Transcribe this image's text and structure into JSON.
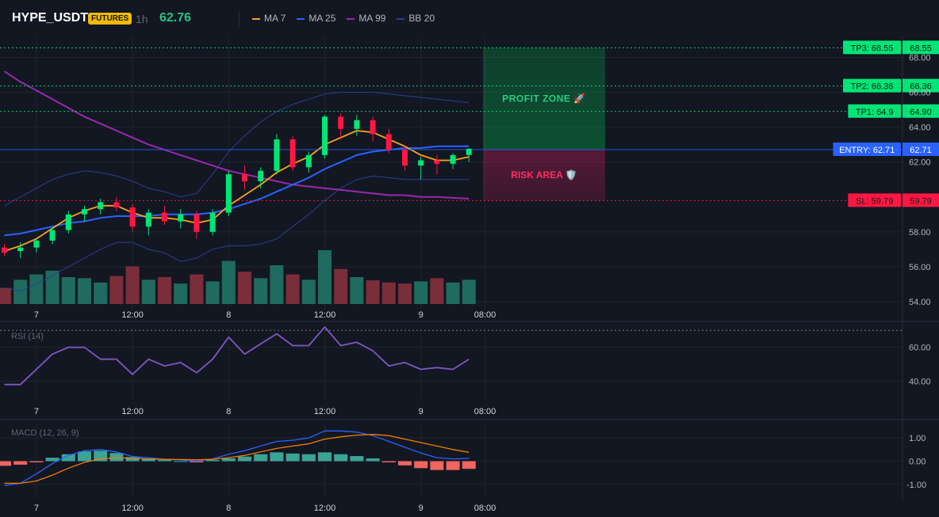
{
  "header": {
    "symbol": "HYPE_USDT",
    "badge": "FUTURES",
    "interval": "1h",
    "price": "62.76",
    "legend": [
      {
        "label": "MA 7",
        "color": "#f7a21b"
      },
      {
        "label": "MA 25",
        "color": "#2962ff"
      },
      {
        "label": "MA 99",
        "color": "#9c27b0"
      },
      {
        "label": "BB 20",
        "color": "#2a3f8f"
      }
    ]
  },
  "colors": {
    "up": "#26a69a",
    "down": "#ef5350",
    "candle_up": "#00e676",
    "candle_down": "#ff1744",
    "entry": "#2962ff",
    "tp": "#00e676",
    "sl": "#ff1744",
    "rsi": "#7e57c2",
    "macd": "#2962ff",
    "signal": "#f57c00"
  },
  "chart_data": [
    {
      "type": "candlestick",
      "panel": "price",
      "ylim": [
        53.5,
        69.2
      ],
      "y_ticks": [
        "68.00",
        "66.00",
        "64.00",
        "62.00",
        "58.00",
        "56.00",
        "54.00"
      ],
      "y_tick_values": [
        68,
        66,
        64,
        62,
        58,
        56,
        54
      ],
      "x_ticks": [
        "7",
        "12:00",
        "8",
        "12:00",
        "9",
        "08:00"
      ],
      "x_tick_index": [
        2,
        8,
        14,
        20,
        26,
        30
      ],
      "ohlc": [
        [
          57.1,
          57.3,
          56.6,
          56.8
        ],
        [
          56.9,
          57.4,
          56.5,
          57.1
        ],
        [
          57.1,
          57.6,
          56.8,
          57.5
        ],
        [
          57.5,
          58.3,
          57.3,
          58.1
        ],
        [
          58.1,
          59.2,
          57.9,
          59.0
        ],
        [
          59.0,
          59.5,
          58.6,
          59.3
        ],
        [
          59.3,
          59.9,
          59.0,
          59.7
        ],
        [
          59.7,
          60.0,
          59.2,
          59.4
        ],
        [
          59.4,
          59.6,
          58.0,
          58.3
        ],
        [
          58.3,
          59.3,
          57.8,
          59.1
        ],
        [
          59.1,
          59.5,
          58.4,
          58.6
        ],
        [
          58.6,
          59.3,
          58.2,
          59.0
        ],
        [
          59.0,
          59.2,
          57.6,
          58.0
        ],
        [
          58.0,
          59.3,
          57.8,
          59.1
        ],
        [
          59.1,
          61.5,
          58.9,
          61.3
        ],
        [
          61.3,
          61.8,
          60.4,
          60.9
        ],
        [
          60.9,
          61.7,
          60.5,
          61.5
        ],
        [
          61.5,
          63.6,
          61.3,
          63.3
        ],
        [
          63.3,
          63.5,
          61.5,
          61.7
        ],
        [
          61.7,
          62.6,
          61.4,
          62.4
        ],
        [
          62.4,
          64.7,
          62.2,
          64.6
        ],
        [
          64.6,
          64.8,
          63.3,
          63.9
        ],
        [
          63.9,
          64.7,
          63.5,
          64.4
        ],
        [
          64.4,
          64.6,
          63.2,
          63.6
        ],
        [
          63.6,
          63.9,
          62.5,
          62.7
        ],
        [
          62.7,
          62.9,
          61.5,
          61.8
        ],
        [
          61.8,
          62.3,
          61.0,
          62.1
        ],
        [
          62.1,
          62.4,
          61.3,
          61.9
        ],
        [
          61.9,
          62.5,
          61.6,
          62.4
        ],
        [
          62.4,
          62.8,
          62.0,
          62.76
        ]
      ],
      "volume": [
        30,
        45,
        55,
        62,
        50,
        48,
        40,
        52,
        70,
        45,
        50,
        38,
        55,
        42,
        80,
        60,
        48,
        72,
        55,
        45,
        100,
        65,
        50,
        44,
        40,
        38,
        42,
        48,
        40,
        45
      ],
      "ma7": [
        56.9,
        57.2,
        57.6,
        58.2,
        58.8,
        59.2,
        59.5,
        59.5,
        59.1,
        58.8,
        58.8,
        58.7,
        58.5,
        58.7,
        59.5,
        60.1,
        60.7,
        61.4,
        61.9,
        62.3,
        63.0,
        63.4,
        63.8,
        63.7,
        63.3,
        62.9,
        62.4,
        62.1,
        62.1,
        62.3
      ],
      "ma25": [
        57.8,
        57.9,
        58.1,
        58.3,
        58.5,
        58.6,
        58.8,
        58.9,
        58.9,
        58.9,
        59.0,
        59.0,
        59.0,
        59.1,
        59.3,
        59.6,
        59.9,
        60.3,
        60.7,
        61.1,
        61.6,
        62.0,
        62.4,
        62.6,
        62.7,
        62.8,
        62.8,
        62.9,
        62.9,
        62.9
      ],
      "ma99": [
        67.2,
        66.6,
        66.1,
        65.6,
        65.1,
        64.6,
        64.2,
        63.8,
        63.4,
        63.0,
        62.7,
        62.4,
        62.1,
        61.8,
        61.5,
        61.3,
        61.1,
        60.9,
        60.7,
        60.6,
        60.5,
        60.4,
        60.3,
        60.2,
        60.1,
        60.1,
        60.0,
        60.0,
        59.95,
        59.9
      ],
      "bb_upper": [
        59.5,
        60.0,
        60.5,
        61.0,
        61.3,
        61.5,
        61.4,
        61.2,
        60.9,
        60.5,
        60.3,
        60.0,
        60.2,
        61.3,
        62.6,
        63.5,
        64.3,
        64.9,
        65.3,
        65.6,
        65.9,
        66.0,
        66.0,
        66.0,
        65.9,
        65.8,
        65.7,
        65.6,
        65.5,
        65.4
      ],
      "bb_lower": [
        54.8,
        54.6,
        55.0,
        55.5,
        56.0,
        56.5,
        57.0,
        57.4,
        57.4,
        57.0,
        56.8,
        56.3,
        56.5,
        57.0,
        57.2,
        57.2,
        57.3,
        57.6,
        58.3,
        59.0,
        59.8,
        60.5,
        61.0,
        61.2,
        61.1,
        61.0,
        61.0,
        61.0,
        61.0,
        61.0
      ],
      "levels": [
        {
          "tag": "TP3: 68.55",
          "price": "68.55",
          "value": 68.55,
          "kind": "tp"
        },
        {
          "tag": "TP2: 66.36",
          "price": "66.36",
          "value": 66.36,
          "kind": "tp"
        },
        {
          "tag": "TP1: 64.9",
          "price": "64.90",
          "value": 64.9,
          "kind": "tp"
        },
        {
          "tag": "ENTRY: 62.71",
          "price": "62.71",
          "value": 62.71,
          "kind": "entry"
        },
        {
          "tag": "SL: 59.79",
          "price": "59.79",
          "value": 59.79,
          "kind": "sl"
        }
      ],
      "zones": {
        "profit": "PROFIT ZONE 🚀",
        "risk": "RISK AREA 🛡️"
      }
    },
    {
      "type": "line",
      "panel": "rsi",
      "label": "RSI (14)",
      "ylim": [
        29,
        72
      ],
      "y_ticks": [
        "60.00",
        "40.00"
      ],
      "y_tick_values": [
        60,
        40
      ],
      "values": [
        38,
        38,
        47,
        56,
        60,
        60,
        53,
        53,
        44,
        53,
        49,
        51,
        45,
        53,
        66,
        56,
        62,
        68,
        61,
        61,
        72,
        61,
        63,
        58,
        49,
        51,
        47,
        48,
        47,
        53
      ]
    },
    {
      "type": "bar+line",
      "panel": "macd",
      "label": "MACD (12, 26, 9)",
      "ylim": [
        -1.55,
        1.55
      ],
      "y_ticks": [
        "1.00",
        "0.00",
        "-1.00"
      ],
      "y_tick_values": [
        1,
        0,
        -1
      ],
      "histogram": [
        -0.2,
        -0.15,
        -0.05,
        0.15,
        0.3,
        0.42,
        0.45,
        0.35,
        0.18,
        0.12,
        0.05,
        0.0,
        -0.05,
        0.05,
        0.12,
        0.2,
        0.3,
        0.38,
        0.33,
        0.3,
        0.38,
        0.3,
        0.22,
        0.12,
        -0.05,
        -0.18,
        -0.3,
        -0.38,
        -0.38,
        -0.33
      ],
      "macd": [
        -1.05,
        -0.95,
        -0.55,
        -0.1,
        0.25,
        0.45,
        0.5,
        0.4,
        0.2,
        0.15,
        0.08,
        0.05,
        0.0,
        0.1,
        0.3,
        0.45,
        0.65,
        0.85,
        0.9,
        1.0,
        1.3,
        1.3,
        1.25,
        1.1,
        0.85,
        0.6,
        0.35,
        0.15,
        0.1,
        0.12
      ],
      "signal": [
        -0.95,
        -0.95,
        -0.85,
        -0.6,
        -0.3,
        -0.05,
        0.1,
        0.15,
        0.12,
        0.1,
        0.08,
        0.07,
        0.06,
        0.08,
        0.15,
        0.25,
        0.4,
        0.55,
        0.65,
        0.75,
        0.95,
        1.05,
        1.12,
        1.15,
        1.1,
        0.95,
        0.8,
        0.65,
        0.5,
        0.38
      ]
    }
  ]
}
